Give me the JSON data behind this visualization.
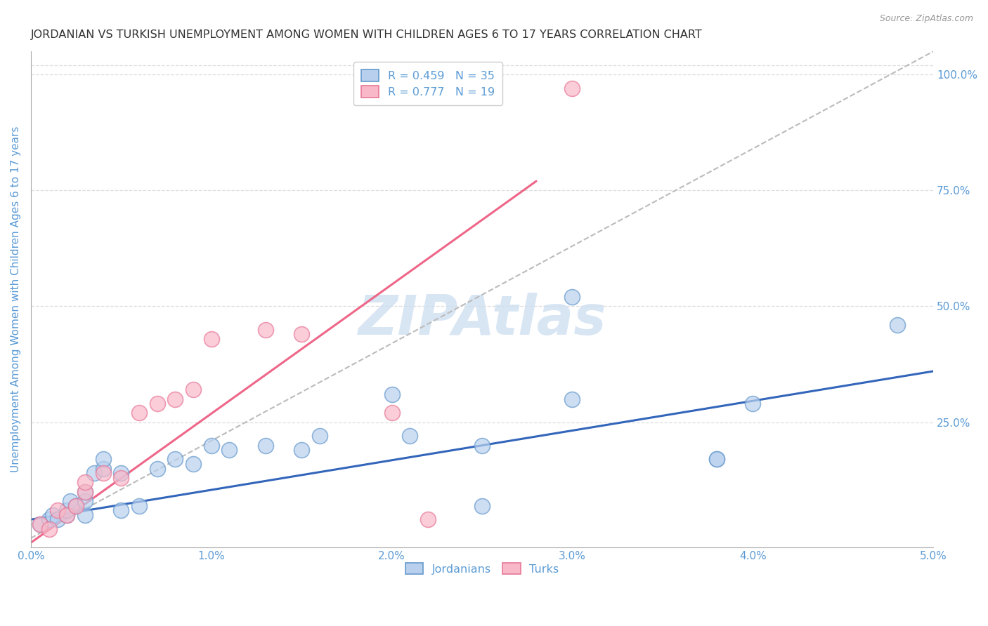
{
  "title": "JORDANIAN VS TURKISH UNEMPLOYMENT AMONG WOMEN WITH CHILDREN AGES 6 TO 17 YEARS CORRELATION CHART",
  "source": "Source: ZipAtlas.com",
  "ylabel": "Unemployment Among Women with Children Ages 6 to 17 years",
  "xlim": [
    0.0,
    0.05
  ],
  "ylim": [
    -0.02,
    1.05
  ],
  "xticks": [
    0.0,
    0.01,
    0.02,
    0.03,
    0.04,
    0.05
  ],
  "xticklabels": [
    "0.0%",
    "1.0%",
    "2.0%",
    "3.0%",
    "4.0%",
    "5.0%"
  ],
  "yticks_right": [
    0.25,
    0.5,
    0.75,
    1.0
  ],
  "yticklabels_right": [
    "25.0%",
    "50.0%",
    "75.0%",
    "100.0%"
  ],
  "legend_entries": [
    {
      "label": "R = 0.459   N = 35"
    },
    {
      "label": "R = 0.777   N = 19"
    }
  ],
  "jordanians_x": [
    0.0005,
    0.001,
    0.0012,
    0.0015,
    0.002,
    0.002,
    0.0022,
    0.0025,
    0.003,
    0.003,
    0.003,
    0.0035,
    0.004,
    0.004,
    0.005,
    0.005,
    0.006,
    0.007,
    0.008,
    0.009,
    0.01,
    0.011,
    0.013,
    0.015,
    0.016,
    0.02,
    0.021,
    0.025,
    0.025,
    0.03,
    0.03,
    0.038,
    0.038,
    0.04,
    0.048
  ],
  "jordanians_y": [
    0.03,
    0.04,
    0.05,
    0.04,
    0.05,
    0.06,
    0.08,
    0.07,
    0.05,
    0.08,
    0.1,
    0.14,
    0.15,
    0.17,
    0.14,
    0.06,
    0.07,
    0.15,
    0.17,
    0.16,
    0.2,
    0.19,
    0.2,
    0.19,
    0.22,
    0.31,
    0.22,
    0.07,
    0.2,
    0.52,
    0.3,
    0.17,
    0.17,
    0.29,
    0.46
  ],
  "turks_x": [
    0.0005,
    0.001,
    0.0015,
    0.002,
    0.0025,
    0.003,
    0.003,
    0.004,
    0.005,
    0.006,
    0.007,
    0.008,
    0.009,
    0.01,
    0.013,
    0.015,
    0.02,
    0.022,
    0.03
  ],
  "turks_y": [
    0.03,
    0.02,
    0.06,
    0.05,
    0.07,
    0.1,
    0.12,
    0.14,
    0.13,
    0.27,
    0.29,
    0.3,
    0.32,
    0.43,
    0.45,
    0.44,
    0.27,
    0.04,
    0.97
  ],
  "blue_line_x": [
    0.0,
    0.05
  ],
  "blue_line_y": [
    0.04,
    0.36
  ],
  "pink_line_x": [
    0.0,
    0.028
  ],
  "pink_line_y": [
    -0.01,
    0.77
  ],
  "diag_line_x": [
    0.0,
    0.05
  ],
  "diag_line_y": [
    0.0,
    1.05
  ],
  "watermark": "ZIPAtlas",
  "bg_color": "#ffffff",
  "title_color": "#333333",
  "axis_label_color": "#5b9bd5",
  "tick_color": "#5b9bd5",
  "blue_scatter_facecolor": "#b8d0ee",
  "blue_scatter_edgecolor": "#6699cc",
  "pink_scatter_facecolor": "#f8b8c8",
  "pink_scatter_edgecolor": "#e87898",
  "blue_line_color": "#3366bb",
  "pink_line_color": "#ee6688",
  "diag_line_color": "#bbbbbb",
  "grid_color": "#dddddd",
  "watermark_color": "#ccddf0"
}
